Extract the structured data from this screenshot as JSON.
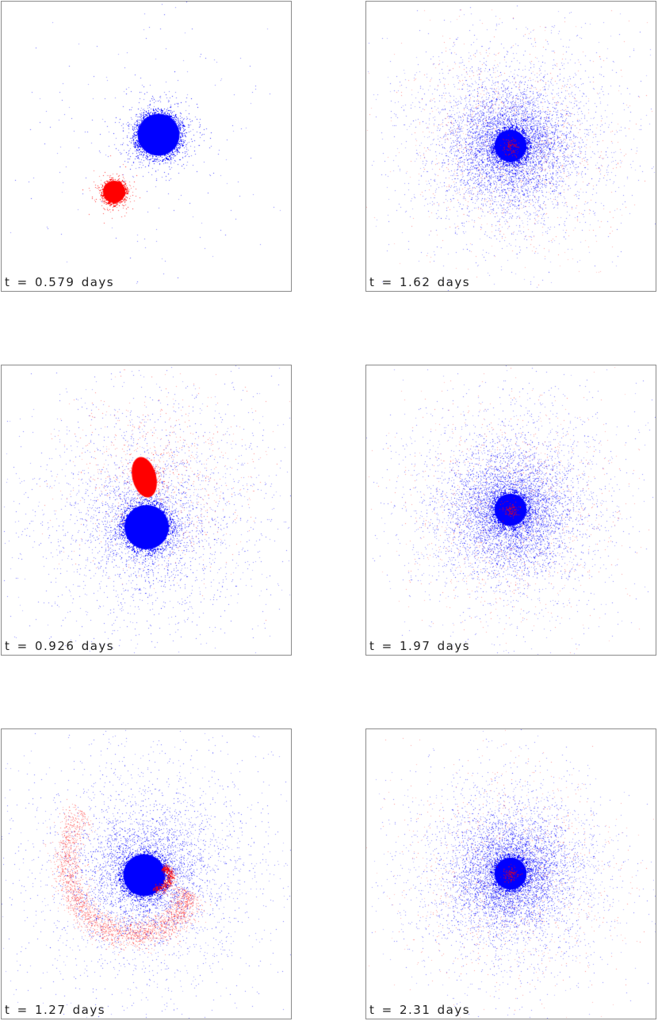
{
  "colors": {
    "primary": "#0000ff",
    "secondary": "#ff0000",
    "frame": "#8a8a8a"
  },
  "panels": [
    {
      "time_label": "t = 0.579 days",
      "stage": "approach"
    },
    {
      "time_label": "t = 1.62 days",
      "stage": "merged-halo"
    },
    {
      "time_label": "t = 0.926 days",
      "stage": "contact"
    },
    {
      "time_label": "t = 1.97 days",
      "stage": "merged-halo"
    },
    {
      "time_label": "t = 1.27 days",
      "stage": "spiral"
    },
    {
      "time_label": "t = 2.31 days",
      "stage": "merged-halo"
    }
  ]
}
